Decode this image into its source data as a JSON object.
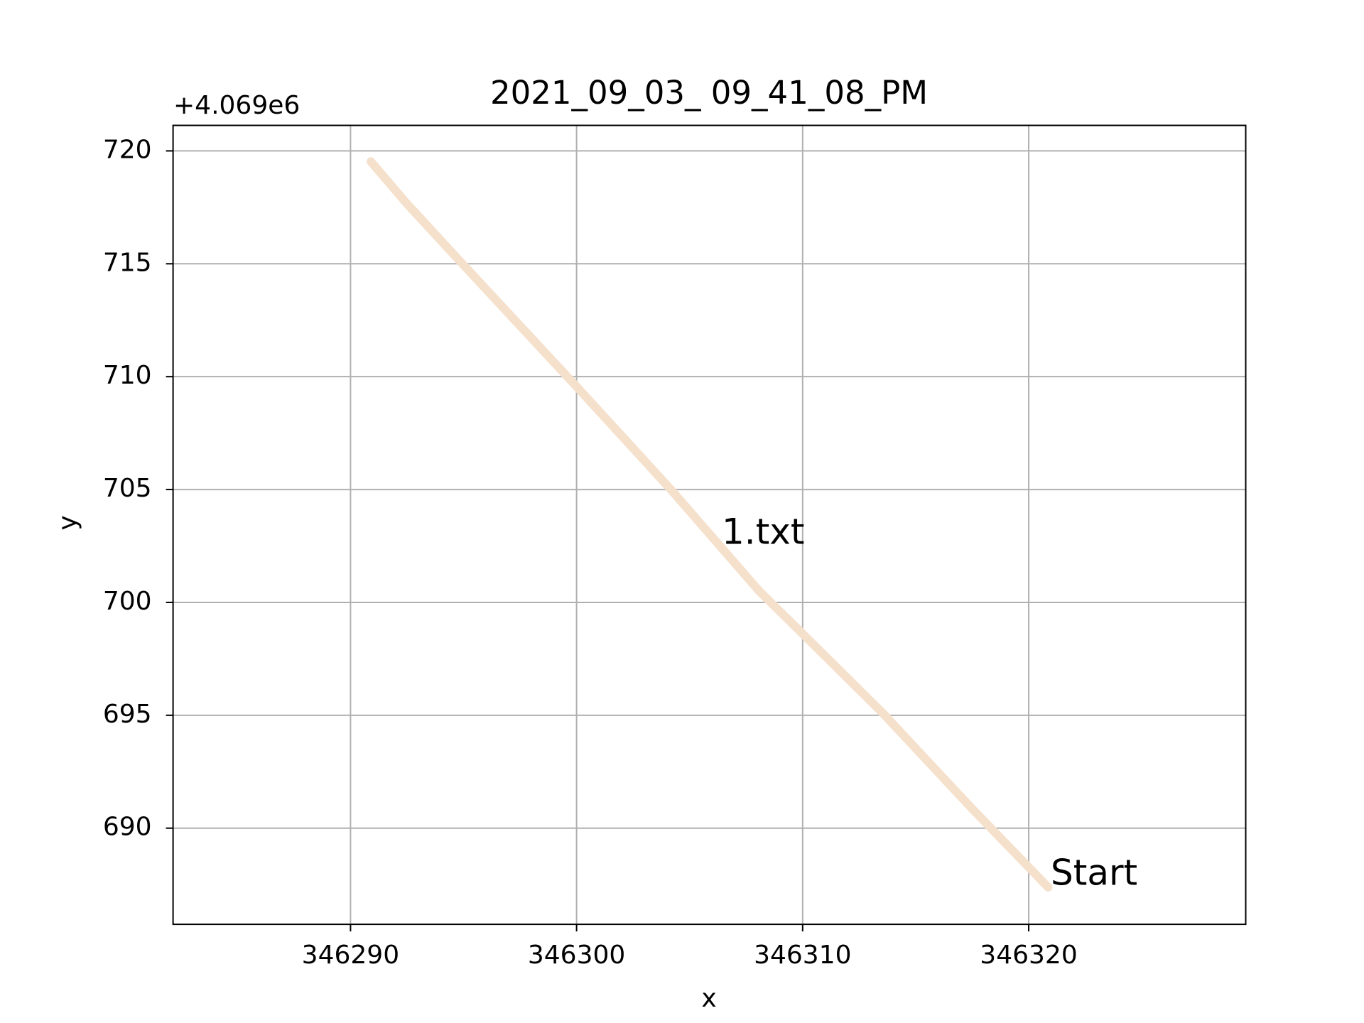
{
  "chart_data": {
    "type": "line",
    "title": "2021_09_03_ 09_41_08_PM",
    "x_label": "x",
    "y_label": "y",
    "y_offset_text": "+4.069e6",
    "annotations": [
      "1.txt",
      "Start"
    ],
    "annotation_colors": [
      "#000000",
      "#ff0000"
    ],
    "grid": true,
    "xlim": [
      346282.15,
      346329.6
    ],
    "ylim": [
      685.74,
      721.13
    ],
    "xticks": [
      346290,
      346300,
      346310,
      346320
    ],
    "yticks": [
      690,
      695,
      700,
      705,
      710,
      715,
      720
    ],
    "series": [
      {
        "color": "#f5e0cb",
        "x": [
          346320.86,
          346317.46,
          346313.55,
          346310,
          346308.09,
          346304.18,
          346300,
          346294.8,
          346292.46,
          346290.9
        ],
        "values": [
          687.38,
          690.9,
          695.09,
          698.61,
          700.49,
          704.99,
          709.56,
          715.16,
          717.7,
          719.53
        ]
      }
    ]
  }
}
